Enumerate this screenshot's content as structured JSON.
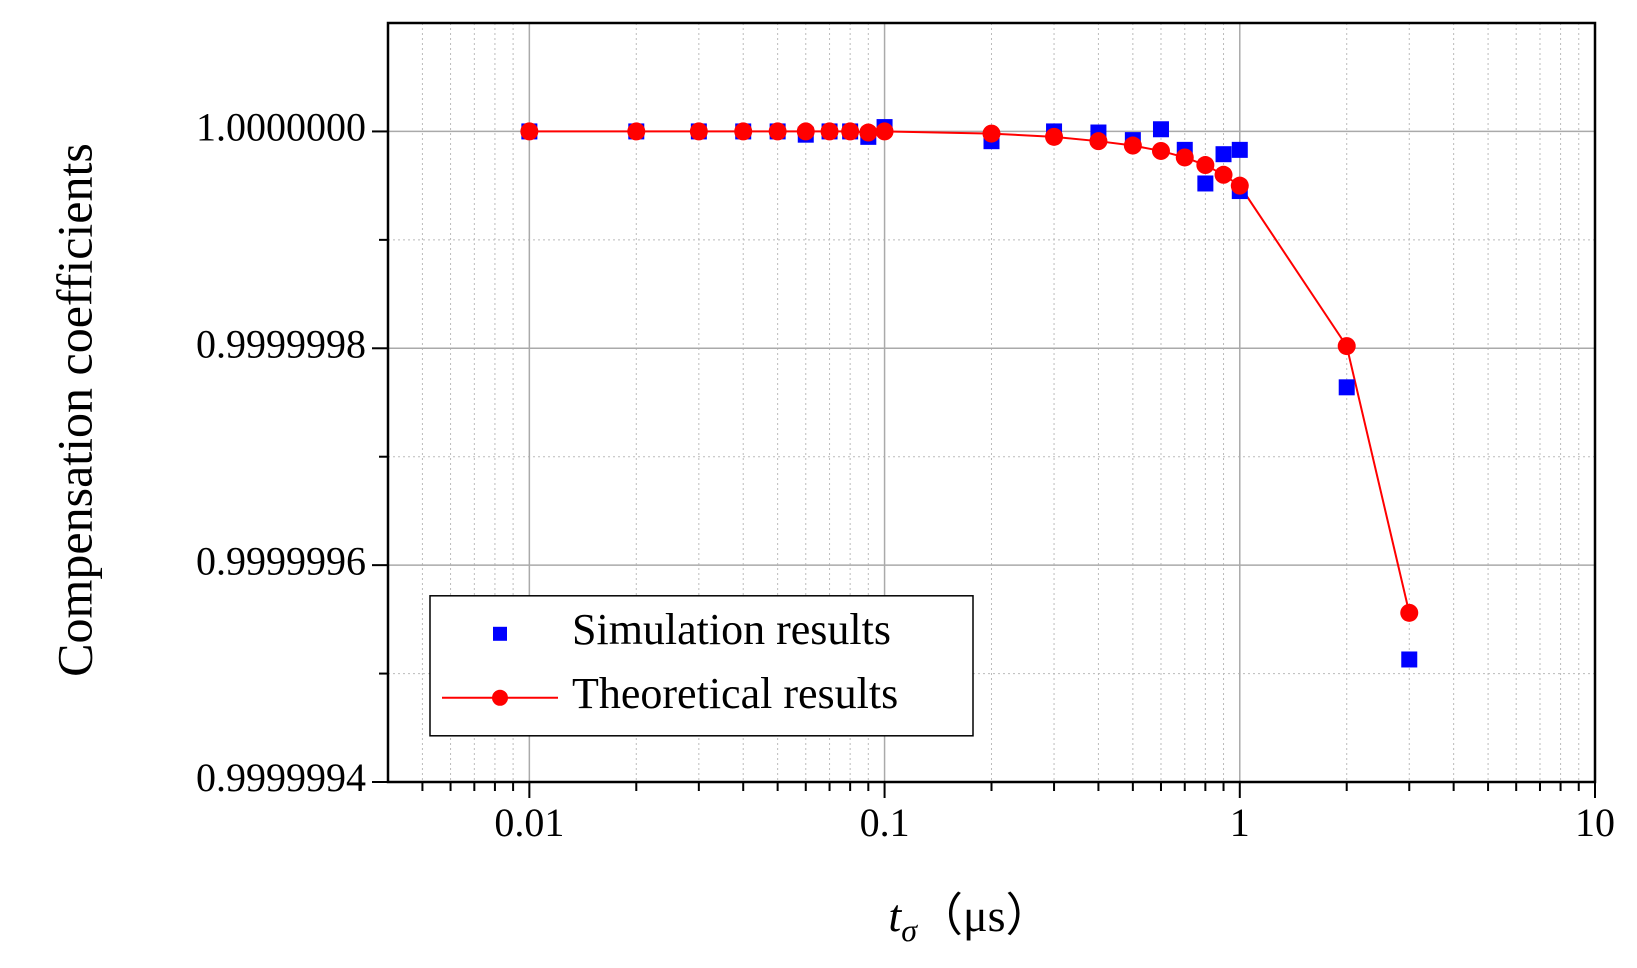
{
  "chart_data": {
    "type": "scatter",
    "y_label": "Compensation coefficients",
    "x_label": "t",
    "x_label_sub": "σ",
    "x_label_unit": "（μs）",
    "xscale": "log",
    "xlim": [
      0.004,
      10
    ],
    "xticks": [
      0.01,
      0.1,
      1,
      10
    ],
    "ylim": [
      0.9999994,
      1.0000001
    ],
    "yticks": [
      {
        "value": 0.9999994,
        "label": "0.9999994"
      },
      0.9999996,
      0.9999998,
      {
        "value": 1,
        "label": "1.0000000"
      }
    ],
    "grid": true,
    "minor_grid": true,
    "legend": "lower left",
    "series": [
      {
        "name": "Simulation results",
        "color": "#0000ff",
        "marker": "square",
        "line": false,
        "x": [
          0.01,
          0.02,
          0.03,
          0.04,
          0.05,
          0.06,
          0.07,
          0.08,
          0.09,
          0.1,
          0.2,
          0.3,
          0.4,
          0.5,
          0.6,
          0.7,
          0.8,
          0.9,
          1,
          1,
          2,
          3
        ],
        "values": [
          1,
          1,
          1,
          1,
          1,
          0.999999997,
          1,
          1,
          0.999999995,
          1.000000004,
          0.999999991,
          1,
          0.999999999,
          0.999999992,
          1.000000002,
          0.999999983,
          0.999999952,
          0.999999979,
          0.999999983,
          0.999999945,
          0.999999764,
          0.999999513
        ]
      },
      {
        "name": "Theoretical results",
        "color": "#ff0000",
        "marker": "circle",
        "line": true,
        "x": [
          0.01,
          0.02,
          0.03,
          0.04,
          0.05,
          0.06,
          0.07,
          0.08,
          0.09,
          0.1,
          0.2,
          0.3,
          0.4,
          0.5,
          0.6,
          0.7,
          0.8,
          0.9,
          1,
          2,
          3
        ],
        "values": [
          1,
          1,
          1,
          1,
          1,
          1,
          1,
          1,
          0.999999999,
          1,
          0.999999998,
          0.999999995,
          0.999999991,
          0.999999987,
          0.999999982,
          0.999999976,
          0.999999969,
          0.99999996,
          0.99999995,
          0.999999802,
          0.999999556
        ]
      }
    ]
  }
}
